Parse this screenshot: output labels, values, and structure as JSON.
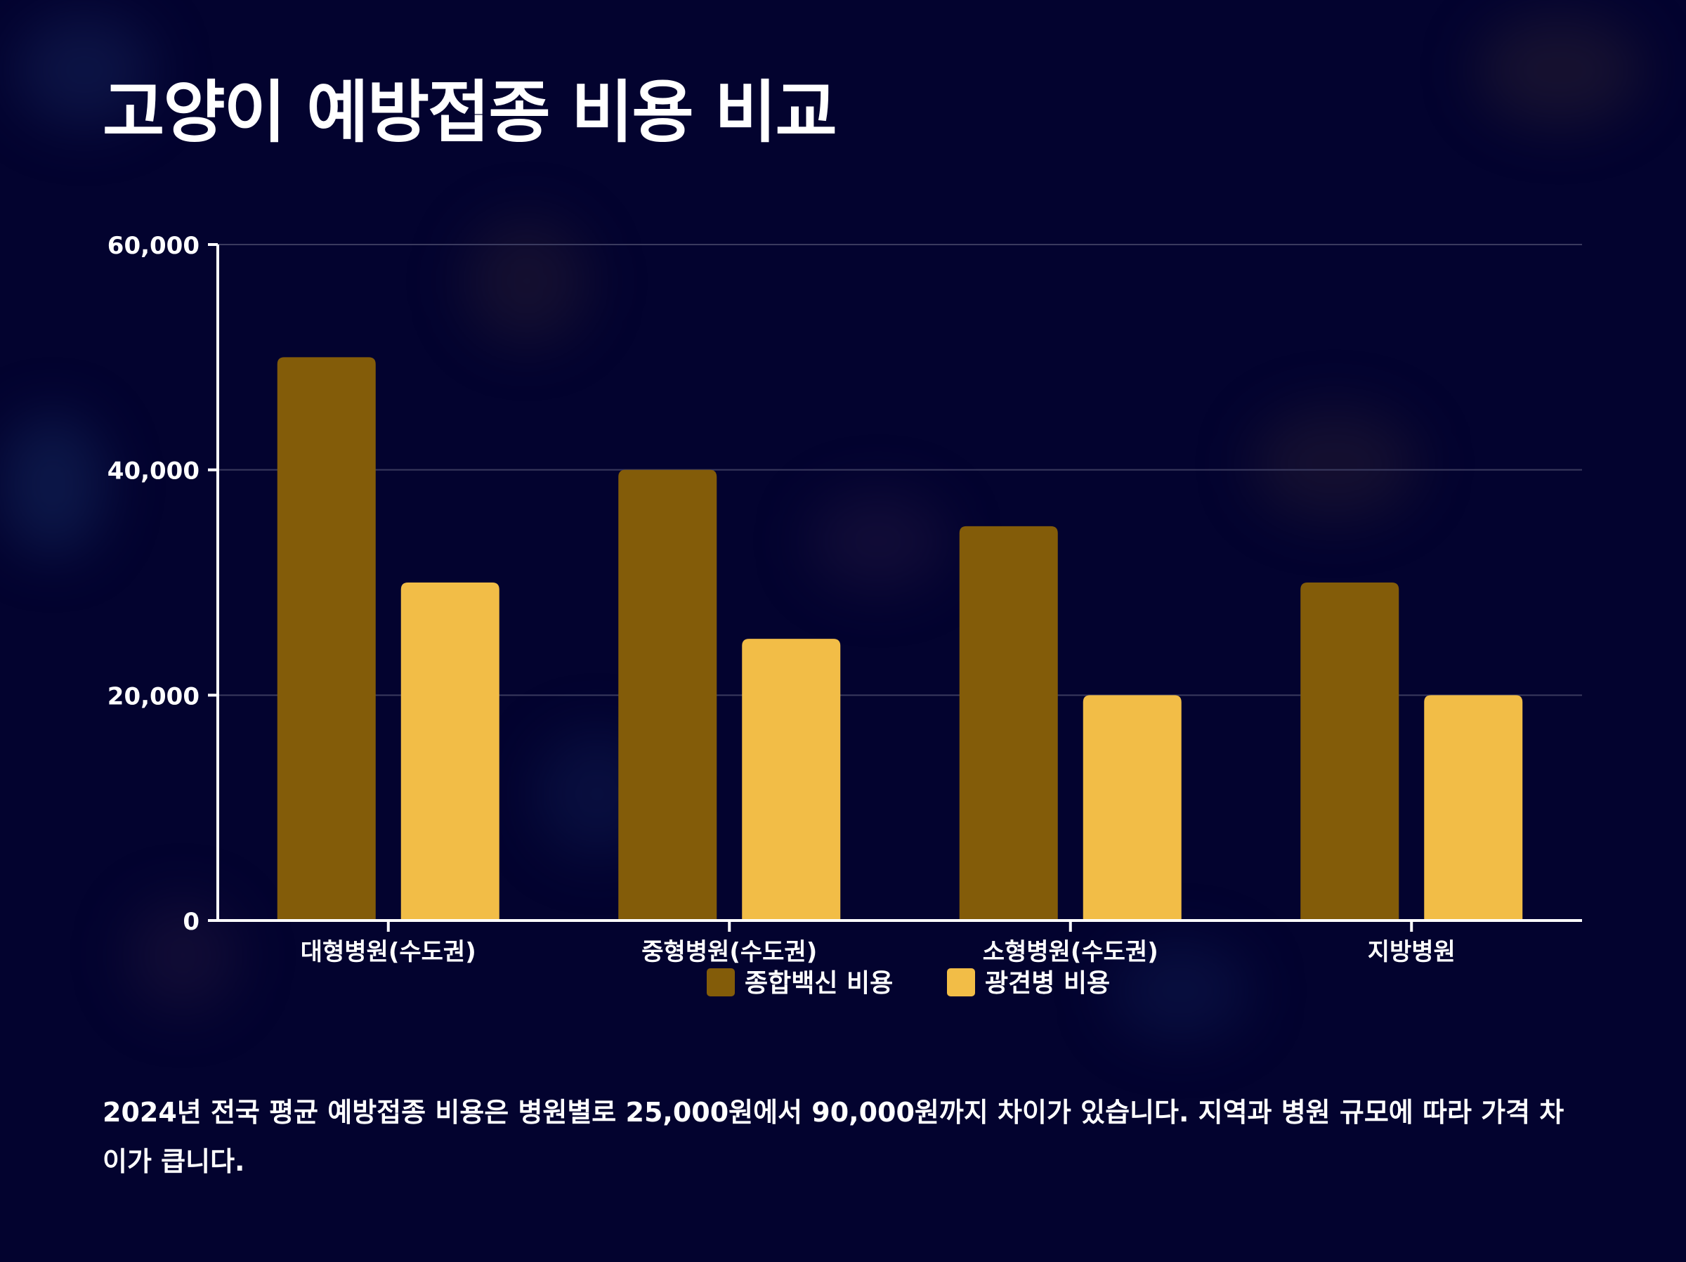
{
  "title": "고양이 예방접종 비용 비교",
  "caption": "2024년 전국 평균 예방접종 비용은 병원별로 25,000원에서 90,000원까지 차이가 있습니다. 지역과 병원 규모에 따라 가격 차이가 큽니다.",
  "colors": {
    "background": "#03032f",
    "series_dark": "#835c09",
    "series_light": "#f2bd47",
    "axis": "#ffffff",
    "grid": "#3a3a5e"
  },
  "chart_data": {
    "type": "bar",
    "title": "고양이 예방접종 비용 비교",
    "xlabel": "",
    "ylabel": "",
    "categories": [
      "대형병원(수도권)",
      "중형병원(수도권)",
      "소형병원(수도권)",
      "지방병원"
    ],
    "series": [
      {
        "name": "종합백신 비용",
        "values": [
          50000,
          40000,
          35000,
          30000
        ],
        "color": "#835c09"
      },
      {
        "name": "광견병 비용",
        "values": [
          30000,
          25000,
          20000,
          20000
        ],
        "color": "#f2bd47"
      }
    ],
    "ylim": [
      0,
      60000
    ],
    "yticks": [
      0,
      20000,
      40000,
      60000
    ],
    "ytick_labels": [
      "0",
      "20,000",
      "40,000",
      "60,000"
    ],
    "grid": true,
    "legend_position": "bottom-center"
  }
}
